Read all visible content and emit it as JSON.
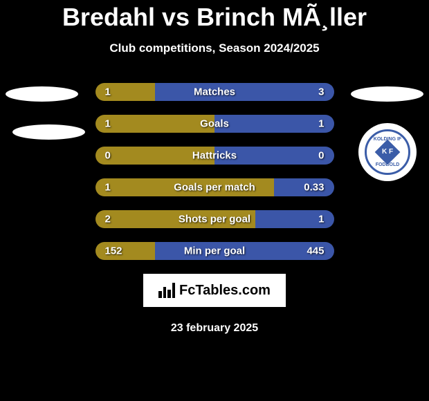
{
  "title": "Bredahl vs Brinch MÃ¸ller",
  "subtitle": "Club competitions, Season 2024/2025",
  "date": "23 february 2025",
  "watermark": {
    "text": "FcTables.com"
  },
  "colors": {
    "left_bar": "#a38a1f",
    "right_bar": "#3b56a8",
    "background": "#000000",
    "text": "#ffffff"
  },
  "club_badge_right": {
    "top_text": "KOLDING IF",
    "year": "18 96",
    "diamond_text": "K F",
    "bottom_text": "FODBOLD"
  },
  "stats": [
    {
      "label": "Matches",
      "left_value": "1",
      "right_value": "3",
      "left_width_pct": 25,
      "right_width_pct": 75
    },
    {
      "label": "Goals",
      "left_value": "1",
      "right_value": "1",
      "left_width_pct": 50,
      "right_width_pct": 50
    },
    {
      "label": "Hattricks",
      "left_value": "0",
      "right_value": "0",
      "left_width_pct": 50,
      "right_width_pct": 50
    },
    {
      "label": "Goals per match",
      "left_value": "1",
      "right_value": "0.33",
      "left_width_pct": 75,
      "right_width_pct": 25
    },
    {
      "label": "Shots per goal",
      "left_value": "2",
      "right_value": "1",
      "left_width_pct": 67,
      "right_width_pct": 33
    },
    {
      "label": "Min per goal",
      "left_value": "152",
      "right_value": "445",
      "left_width_pct": 25,
      "right_width_pct": 75
    }
  ]
}
